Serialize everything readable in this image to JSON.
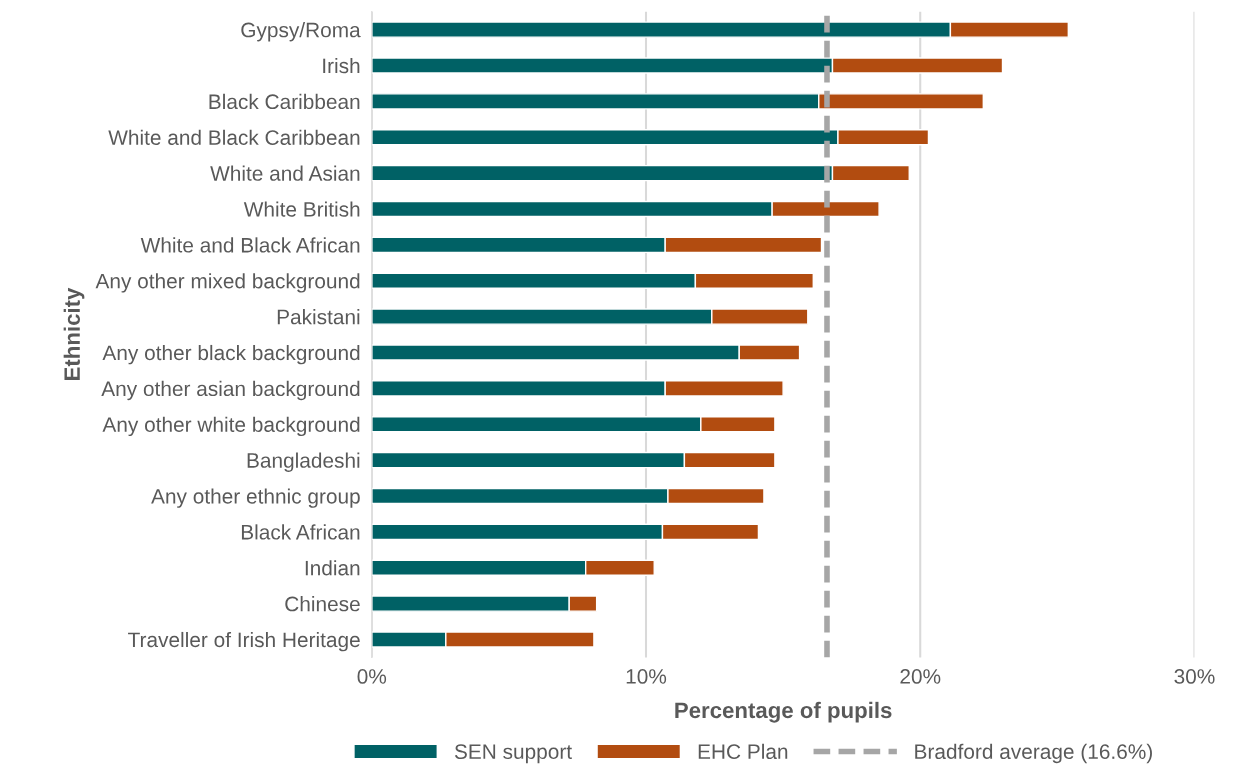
{
  "chart_data": {
    "type": "bar",
    "orientation": "horizontal",
    "stacked": true,
    "xlabel": "Percentage of pupils",
    "ylabel": "Ethnicity",
    "categories": [
      "Gypsy/Roma",
      "Irish",
      "Black Caribbean",
      "White and Black Caribbean",
      "White and Asian",
      "White British",
      "White and Black African",
      "Any other mixed background",
      "Pakistani",
      "Any other black background",
      "Any other asian background",
      "Any other white background",
      "Bangladeshi",
      "Any other ethnic group",
      "Black African",
      "Indian",
      "Chinese",
      "Traveller of Irish Heritage"
    ],
    "series": [
      {
        "name": "SEN support",
        "color": "#006165",
        "values": [
          21.1,
          16.8,
          16.3,
          17.0,
          16.8,
          14.6,
          10.7,
          11.8,
          12.4,
          13.4,
          10.7,
          12.0,
          11.4,
          10.8,
          10.6,
          7.8,
          7.2,
          2.7
        ]
      },
      {
        "name": "EHC Plan",
        "color": "#b24c10",
        "values": [
          4.3,
          6.2,
          6.0,
          3.3,
          2.8,
          3.9,
          5.7,
          4.3,
          3.5,
          2.2,
          4.3,
          2.7,
          3.3,
          3.5,
          3.5,
          2.5,
          1.0,
          5.4
        ]
      }
    ],
    "ref_lines": [
      {
        "axis": "x",
        "value": 16.6,
        "label": "Bradford average (16.6%)",
        "color": "#a6a6a6",
        "line_style": "dashed"
      }
    ],
    "xlim": [
      0,
      30
    ],
    "xticks": [
      {
        "value": 0,
        "label": "0%"
      },
      {
        "value": 10,
        "label": "10%"
      },
      {
        "value": 20,
        "label": "20%"
      },
      {
        "value": 30,
        "label": "30%"
      }
    ],
    "grid": "x",
    "legend": "bottom"
  }
}
